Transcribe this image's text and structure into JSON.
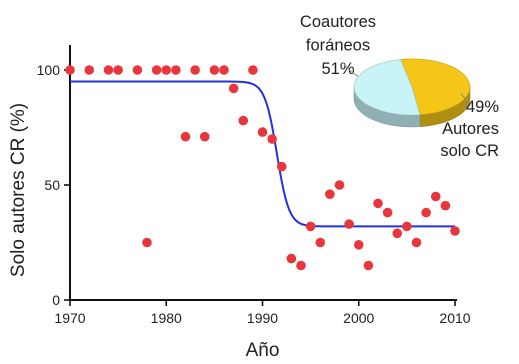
{
  "chart_data": {
    "type": "scatter",
    "title": "",
    "xlabel": "Año",
    "ylabel": "Solo autores CR (%)",
    "xlim": [
      1970,
      2010
    ],
    "ylim": [
      0,
      100
    ],
    "x_ticks": [
      "1970",
      "1980",
      "1990",
      "2000",
      "2010"
    ],
    "y_ticks": [
      "0",
      "50",
      "100"
    ],
    "grid": false,
    "series": [
      {
        "points": [
          [
            1970,
            100
          ],
          [
            1972,
            100
          ],
          [
            1974,
            100
          ],
          [
            1975,
            100
          ],
          [
            1977,
            100
          ],
          [
            1979,
            100
          ],
          [
            1980,
            100
          ],
          [
            1981,
            100
          ],
          [
            1983,
            100
          ],
          [
            1985,
            100
          ],
          [
            1986,
            100
          ],
          [
            1989,
            100
          ],
          [
            1978,
            25
          ],
          [
            1982,
            71
          ],
          [
            1984,
            71
          ],
          [
            1987,
            92
          ],
          [
            1988,
            78
          ],
          [
            1990,
            73
          ],
          [
            1991,
            70
          ],
          [
            1992,
            58
          ],
          [
            1993,
            18
          ],
          [
            1994,
            15
          ],
          [
            1995,
            32
          ],
          [
            1996,
            25
          ],
          [
            1997,
            46
          ],
          [
            1998,
            50
          ],
          [
            1999,
            33
          ],
          [
            2000,
            24
          ],
          [
            2001,
            15
          ],
          [
            2002,
            42
          ],
          [
            2003,
            38
          ],
          [
            2004,
            29
          ],
          [
            2005,
            32
          ],
          [
            2006,
            25
          ],
          [
            2007,
            38
          ],
          [
            2008,
            45
          ],
          [
            2009,
            41
          ],
          [
            2010,
            30
          ]
        ],
        "color": "#e8363c"
      },
      {
        "fit_curve": {
          "upper": 95,
          "lower": 32,
          "midpoint": 1991.5,
          "steepness": 1.6
        },
        "color": "#2233dd"
      }
    ],
    "inset_pie": {
      "type": "pie",
      "slices": [
        {
          "label_lines": [
            "Coautores",
            "foráneos",
            "51%"
          ],
          "value": 51,
          "color": "#f5c518"
        },
        {
          "label_lines": [
            "49%",
            "Autores",
            "solo CR"
          ],
          "value": 49,
          "color": "#c8f3f7"
        }
      ]
    }
  }
}
